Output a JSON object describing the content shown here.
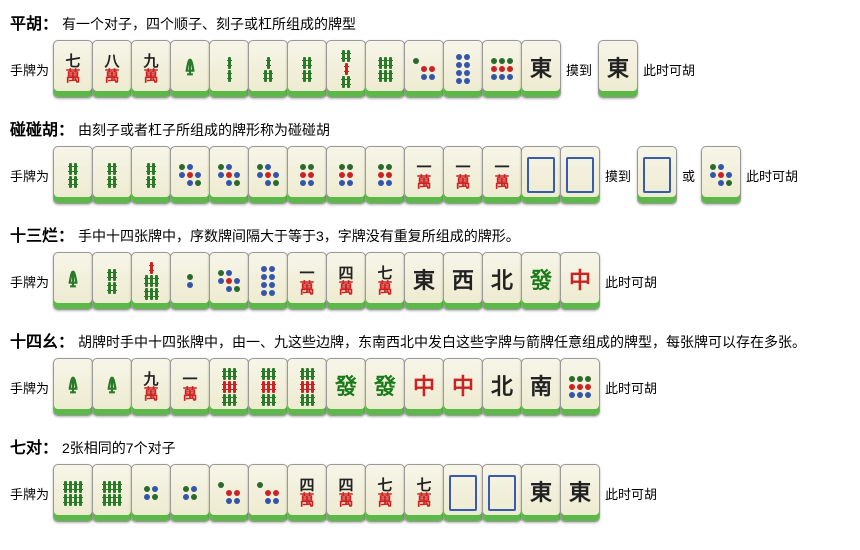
{
  "labels": {
    "hand": "手牌为",
    "draw": "摸到",
    "win": "此时可胡",
    "or": "或"
  },
  "rules": [
    {
      "title": "平胡：",
      "desc": "有一个对子，四个顺子、刻子或杠所组成的牌型",
      "hand": [
        "7w",
        "8w",
        "9w",
        "1s",
        "2s",
        "3s",
        "4s",
        "5s",
        "6s",
        "7t",
        "8t",
        "9t",
        "E"
      ],
      "draw": [
        "E"
      ],
      "or": null
    },
    {
      "title": "碰碰胡：",
      "desc": "由刻子或者杠子所组成的牌形称为碰碰胡",
      "hand": [
        "4s",
        "4s",
        "4s",
        "5t",
        "5t",
        "5t",
        "6t",
        "6t",
        "6t",
        "1w",
        "1w",
        "1w",
        "B",
        "B"
      ],
      "draw": [
        "B"
      ],
      "or": [
        "5t"
      ]
    },
    {
      "title": "十三烂：",
      "desc": "手中十四张牌中，序数牌间隔大于等于3，字牌没有重复所组成的牌形。",
      "hand": [
        "1s",
        "4s",
        "7s",
        "2t",
        "5t",
        "8t",
        "1w",
        "4w",
        "7w",
        "E",
        "W",
        "N",
        "F",
        "Z"
      ],
      "draw": null,
      "or": null
    },
    {
      "title": "十四幺：",
      "desc": "胡牌时手中十四张牌中，由一、九这些边牌，东南西北中发白这些字牌与箭牌任意组成的牌型，每张牌可以存在多张。",
      "hand": [
        "1s",
        "1s",
        "9w",
        "1w",
        "9s",
        "9s",
        "9s",
        "F",
        "F",
        "Z",
        "Z",
        "N",
        "S",
        "9t"
      ],
      "draw": null,
      "or": null
    },
    {
      "title": "七对：",
      "desc": "2张相同的7个对子",
      "hand": [
        "8s",
        "8s",
        "4t",
        "4t",
        "7t",
        "7t",
        "4w",
        "4w",
        "7w",
        "7w",
        "B",
        "B",
        "E",
        "E"
      ],
      "draw": null,
      "or": null
    }
  ],
  "tile_colors": {
    "face": "#f7f5e8",
    "face_shadow": "#eceacd",
    "base": "#5db84a",
    "border": "#999999"
  }
}
